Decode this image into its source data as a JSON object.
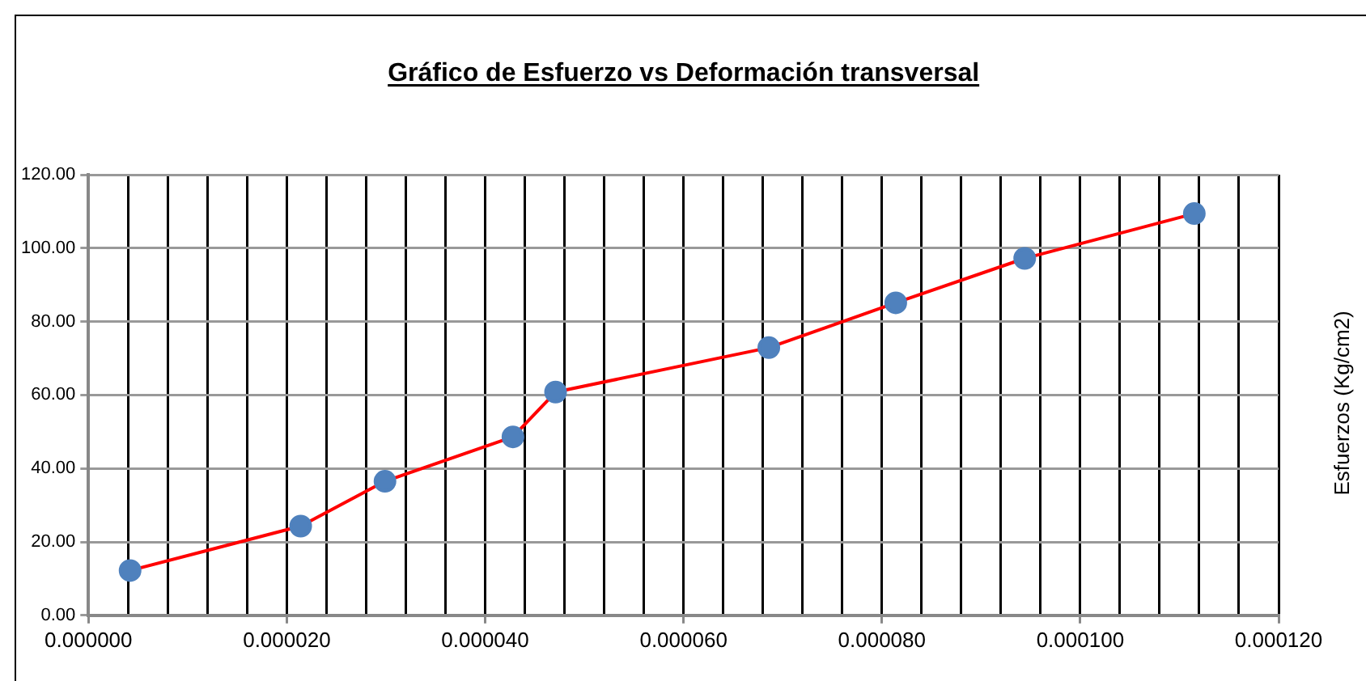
{
  "chart_data": {
    "type": "line",
    "title": "Gráfico de Esfuerzo vs Deformación transversal",
    "ylabel": "Esfuerzos (Kg/cm2)",
    "x": [
      4.2e-06,
      2.14e-05,
      2.99e-05,
      4.28e-05,
      4.71e-05,
      6.86e-05,
      8.14e-05,
      9.44e-05,
      0.0001115
    ],
    "series": [
      {
        "color": "#ff0000",
        "colors": [
          "#4f81bd",
          "#4f81bd",
          "#4f81bd",
          "#4f81bd",
          "#4f81bd",
          "#4f81bd",
          "#4f81bd",
          "#4f81bd",
          "#4f81bd"
        ],
        "values": [
          12.2,
          24.3,
          36.5,
          48.6,
          60.8,
          72.9,
          85.1,
          97.2,
          109.4
        ]
      }
    ],
    "xlim": [
      0,
      0.00012
    ],
    "xticks": [
      {
        "value": 0,
        "label": "0.000000"
      },
      {
        "value": 4e-06,
        "label": null
      },
      {
        "value": 8e-06,
        "label": null
      },
      {
        "value": 1.2e-05,
        "label": null
      },
      {
        "value": 1.6e-05,
        "label": null
      },
      {
        "value": 2e-05,
        "label": "0.000020"
      },
      {
        "value": 2.4e-05,
        "label": null
      },
      {
        "value": 2.8e-05,
        "label": null
      },
      {
        "value": 3.2e-05,
        "label": null
      },
      {
        "value": 3.6e-05,
        "label": null
      },
      {
        "value": 4e-05,
        "label": "0.000040"
      },
      {
        "value": 4.4e-05,
        "label": null
      },
      {
        "value": 4.8e-05,
        "label": null
      },
      {
        "value": 5.2e-05,
        "label": null
      },
      {
        "value": 5.6e-05,
        "label": null
      },
      {
        "value": 6e-05,
        "label": "0.000060"
      },
      {
        "value": 6.4e-05,
        "label": null
      },
      {
        "value": 6.8e-05,
        "label": null
      },
      {
        "value": 7.2e-05,
        "label": null
      },
      {
        "value": 7.6e-05,
        "label": null
      },
      {
        "value": 8e-05,
        "label": "0.000080"
      },
      {
        "value": 8.4e-05,
        "label": null
      },
      {
        "value": 8.8e-05,
        "label": null
      },
      {
        "value": 9.2e-05,
        "label": null
      },
      {
        "value": 9.6e-05,
        "label": null
      },
      {
        "value": 0.0001,
        "label": "0.000100"
      },
      {
        "value": 0.000104,
        "label": null
      },
      {
        "value": 0.000108,
        "label": null
      },
      {
        "value": 0.000112,
        "label": null
      },
      {
        "value": 0.000116,
        "label": null
      },
      {
        "value": 0.00012,
        "label": "0.000120"
      }
    ],
    "ylim": [
      0,
      120
    ],
    "yticks": [
      {
        "value": 0,
        "label": "0.00"
      },
      {
        "value": 20,
        "label": "20.00"
      },
      {
        "value": 40,
        "label": "40.00"
      },
      {
        "value": 60,
        "label": "60.00"
      },
      {
        "value": 80,
        "label": "80.00"
      },
      {
        "value": 100,
        "label": "100.00"
      },
      {
        "value": 120,
        "label": "120.00"
      }
    ],
    "grid": true,
    "legend": false,
    "marker": "circle",
    "line_style": "solid"
  }
}
